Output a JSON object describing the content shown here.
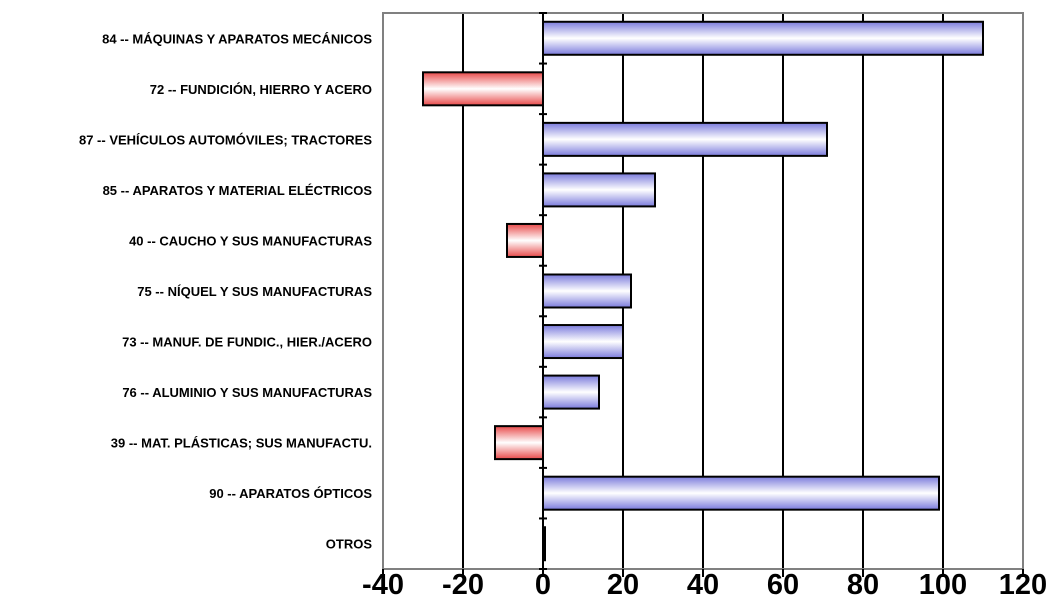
{
  "chart_data": {
    "type": "bar",
    "orientation": "horizontal",
    "categories": [
      "84 -- MÁQUINAS Y APARATOS MECÁNICOS",
      "72 -- FUNDICIÓN, HIERRO Y ACERO",
      "87 -- VEHÍCULOS AUTOMÓVILES; TRACTORES",
      "85 -- APARATOS Y MATERIAL ELÉCTRICOS",
      "40 -- CAUCHO Y SUS MANUFACTURAS",
      "75 -- NÍQUEL Y SUS MANUFACTURAS",
      "73 -- MANUF. DE FUNDIC., HIER./ACERO",
      "76 -- ALUMINIO Y SUS MANUFACTURAS",
      "39 -- MAT. PLÁSTICAS; SUS MANUFACTU.",
      "90 -- APARATOS ÓPTICOS",
      "OTROS"
    ],
    "values": [
      110,
      -30,
      71,
      28,
      -9,
      22,
      20,
      14,
      -12,
      99,
      0.5
    ],
    "xlim": [
      -40,
      120
    ],
    "xticks": [
      "-40",
      "-20",
      "0",
      "20",
      "40",
      "60",
      "80",
      "100",
      "120"
    ],
    "grid": "vertical",
    "legend": "none",
    "colors": {
      "positive": "#7b7bdc",
      "positive_light": "#ffffff",
      "negative": "#e84a4a",
      "negative_light": "#ffffff",
      "frame": "#808080",
      "grid": "#000000"
    }
  }
}
